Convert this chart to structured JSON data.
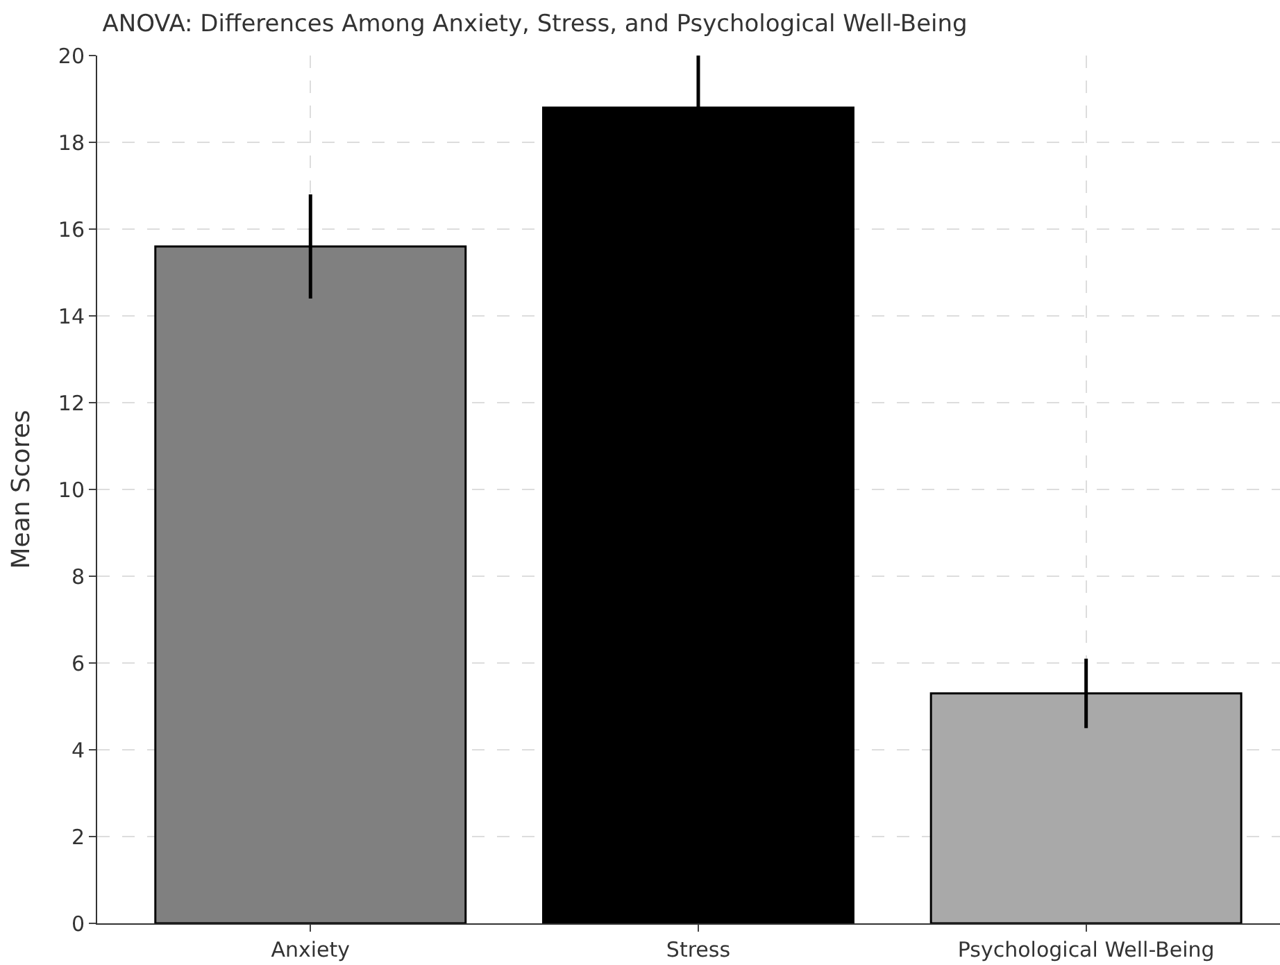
{
  "chart_data": {
    "type": "bar",
    "title": "ANOVA: Differences Among Anxiety, Stress, and Psychological Well-Being",
    "ylabel": "Mean Scores",
    "categories": [
      "Anxiety",
      "Stress",
      "Psychological Well-Being"
    ],
    "values": [
      15.6,
      18.8,
      5.3
    ],
    "colors": [
      "#808080",
      "#000000",
      "#a9a9a9"
    ],
    "errors": [
      1.2,
      1.2,
      0.8
    ],
    "ylim": [
      0,
      20
    ],
    "yticks": [
      0,
      2,
      4,
      6,
      8,
      10,
      12,
      14,
      16,
      18,
      20
    ],
    "grid": true
  }
}
